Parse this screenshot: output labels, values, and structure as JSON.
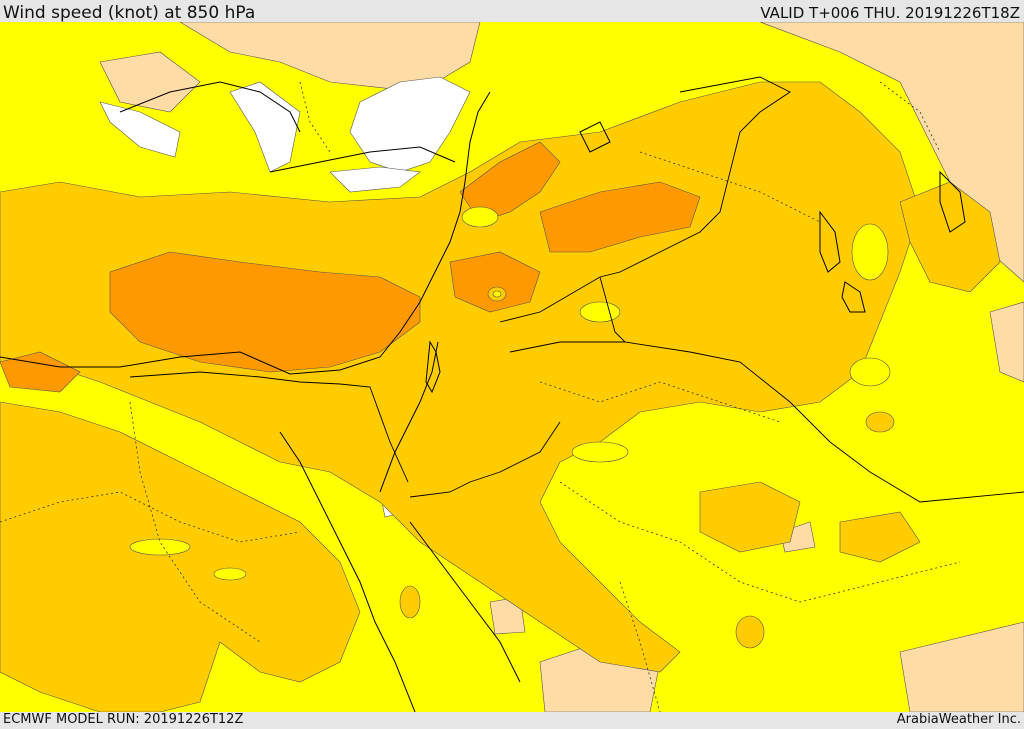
{
  "header": {
    "title": "Wind speed (knot) at 850 hPa",
    "valid": "VALID T+006 THU. 20191226T18Z"
  },
  "footer": {
    "model_run": "ECMWF MODEL RUN: 20191226T12Z",
    "credit": "ArabiaWeather Inc."
  },
  "map": {
    "palette": {
      "calm": "#ffffff",
      "light": "#ffdca6",
      "moderate_low": "#ffff00",
      "moderate": "#ffcc00",
      "strong": "#ff9900",
      "coastline": "#000000",
      "border_dotted": "#333333"
    }
  }
}
